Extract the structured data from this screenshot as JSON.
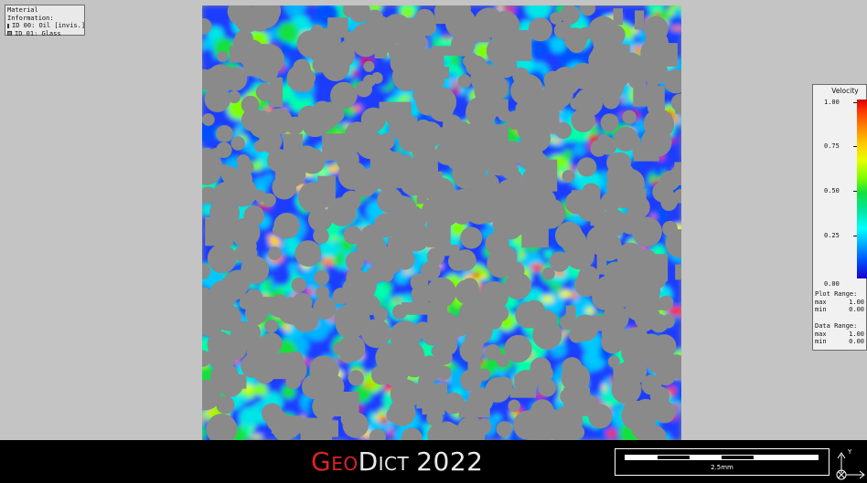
{
  "material_info": {
    "title": "Material Information:",
    "materials": [
      {
        "label": "ID 00: Oil [invis.]",
        "swatch_color": "#ffffff"
      },
      {
        "label": "ID 01: Glass",
        "swatch_color": "#8a8a8a"
      }
    ]
  },
  "legend": {
    "title": "Velocity",
    "ticks": [
      "1.00",
      "0.75",
      "0.50",
      "0.25",
      "0.00"
    ],
    "plot_range": {
      "label": "Plot Range:",
      "max_label": "max",
      "max": "1.00",
      "min_label": "min",
      "min": "0.00"
    },
    "data_range": {
      "label": "Data Range:",
      "max_label": "max",
      "max": "1.00",
      "min_label": "min",
      "min": "0.00"
    }
  },
  "brand": {
    "part1": "Geo",
    "part2": "Dict",
    "year": "2022"
  },
  "scale_bar": {
    "label": "2.5mm"
  },
  "axes": {
    "y_label": "Y"
  },
  "colors": {
    "solid": "#8a8a8a",
    "background": "#c4c4c4",
    "bar": "#000000",
    "brand_red": "#e02222"
  }
}
